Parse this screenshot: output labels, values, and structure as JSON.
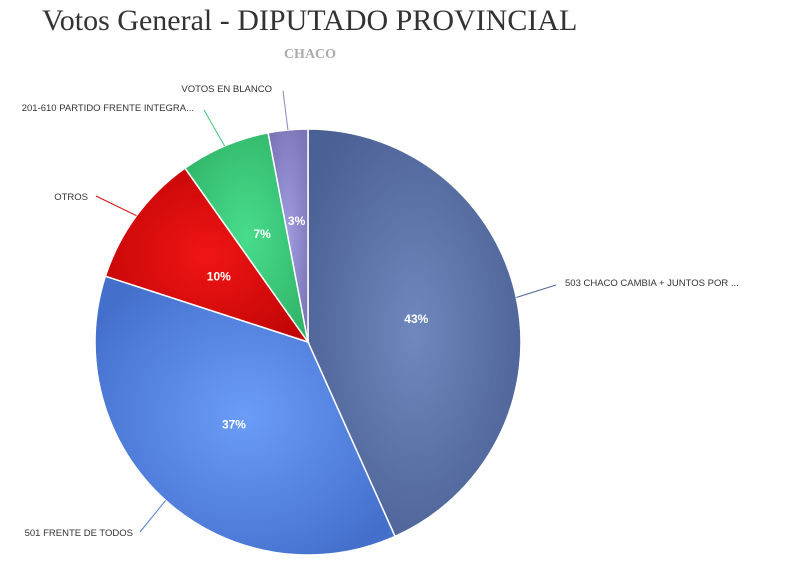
{
  "header": {
    "title": "Votos General - DIPUTADO PROVINCIAL",
    "subtitle": "CHACO"
  },
  "chart_data": {
    "type": "pie",
    "title": "Votos General - DIPUTADO PROVINCIAL",
    "subtitle": "CHACO",
    "slices": [
      {
        "label": "503 CHACO CAMBIA + JUNTOS POR ...",
        "pct_label": "43%",
        "value": 43.3,
        "color": "#4e6699"
      },
      {
        "label": "501 FRENTE DE TODOS",
        "pct_label": "37%",
        "value": 36.7,
        "color": "#4f7fd3"
      },
      {
        "label": "OTROS",
        "pct_label": "10%",
        "value": 10.2,
        "color": "#d40a0a"
      },
      {
        "label": "201-610 PARTIDO FRENTE INTEGRA...",
        "pct_label": "7%",
        "value": 6.8,
        "color": "#3bc878"
      },
      {
        "label": "VOTOS EN BLANCO",
        "pct_label": "3%",
        "value": 3.0,
        "color": "#8a84c4"
      }
    ]
  }
}
